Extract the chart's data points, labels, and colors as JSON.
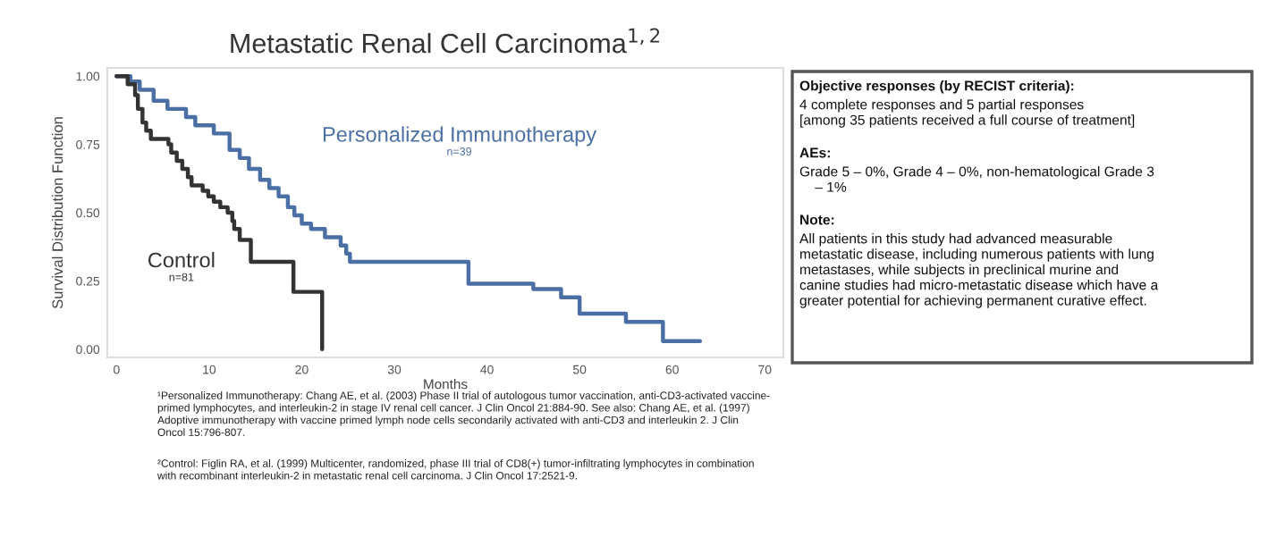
{
  "chart_data": [
    {
      "type": "step",
      "title": "Metastatic Renal Cell Carcinoma$^{1,2}$",
      "xlabel": "Months",
      "ylabel": "Survival Distribution Function",
      "xlim": [
        -1,
        72
      ],
      "ylim": [
        -0.03,
        1.03
      ],
      "xticks": [
        0,
        10,
        20,
        30,
        40,
        50,
        60,
        70
      ],
      "yticks": [
        {
          "value": 0,
          "label": "0.00"
        },
        {
          "value": 0.25,
          "label": "0.25"
        },
        {
          "value": 0.5,
          "label": "0.50"
        },
        {
          "value": 0.75,
          "label": "0.75"
        },
        {
          "value": 1,
          "label": "1.00"
        }
      ],
      "grid": false,
      "legend": false,
      "series": [
        {
          "name": "Personalized Immunotherapy",
          "color": "#4a6fa5",
          "x": [
            0,
            1.5,
            2.5,
            4,
            5.5,
            7.5,
            8.5,
            10.5,
            12.2,
            13.3,
            14.3,
            15.5,
            16.5,
            17.5,
            18.5,
            19.2,
            20,
            21,
            22.5,
            24.2,
            24.8,
            25.2,
            38,
            45,
            48,
            50,
            55,
            59,
            63
          ],
          "values": [
            1.0,
            0.98,
            0.95,
            0.91,
            0.88,
            0.85,
            0.82,
            0.79,
            0.73,
            0.7,
            0.66,
            0.62,
            0.59,
            0.56,
            0.52,
            0.49,
            0.46,
            0.44,
            0.41,
            0.38,
            0.35,
            0.32,
            0.24,
            0.22,
            0.19,
            0.13,
            0.1,
            0.03,
            0.03
          ]
        },
        {
          "name": "Control",
          "color": "#333333",
          "x": [
            0,
            1.2,
            2,
            2.3,
            2.8,
            3.2,
            3.7,
            5.6,
            5.9,
            6.5,
            7.1,
            7.7,
            8.1,
            9.3,
            9.9,
            10.5,
            11.2,
            12,
            12.5,
            12.7,
            13.3,
            14.5,
            19.1,
            22.2,
            22.2
          ],
          "values": [
            1.0,
            0.97,
            0.93,
            0.88,
            0.83,
            0.8,
            0.77,
            0.75,
            0.72,
            0.69,
            0.66,
            0.63,
            0.6,
            0.58,
            0.56,
            0.54,
            0.52,
            0.5,
            0.47,
            0.44,
            0.4,
            0.32,
            0.21,
            0.0,
            0.0
          ]
        }
      ],
      "annotations": [
        "n=39",
        "n=81",
        "¹Personalized Immunotherapy: Chang AE, et al. (2003) Phase II trial of autologous tumor vaccination, anti-CD3-activated vaccine-\nprimed lymphocytes, and interleukin-2 in stage IV renal cell cancer. J Clin Oncol 21:884-90. See also: Chang AE, et al. (1997)\nAdoptive immunotherapy with vaccine primed lymph node cells secondarily activated with anti-CD3 and interleukin 2. J Clin\nOncol 15:796-807.",
        "²Control: Figlin RA, et al. (1999) Multicenter, randomized, phase III trial of CD8(+) tumor-infiltrating lymphocytes in combination\nwith recombinant interleukin-2 in metastatic renal cell carcinoma. J Clin Oncol 17:2521-9."
      ]
    },
    {
      "type": "other",
      "annotations": [
        "Objective responses (by RECIST criteria):",
        "4 complete responses and 5 partial responses\n[among 35 patients received a full course of treatment]",
        "AEs:",
        "Grade 5 – 0%, Grade 4 – 0%, non-hematological Grade 3\n    – 1%",
        "Note:",
        "All patients in this study had advanced measurable\nmetastatic disease, including numerous patients with lung\nmetastases, while subjects in preclinical murine and\ncanine studies had micro-metastatic disease which have a\ngreater potential for achieving permanent curative effect."
      ]
    }
  ]
}
